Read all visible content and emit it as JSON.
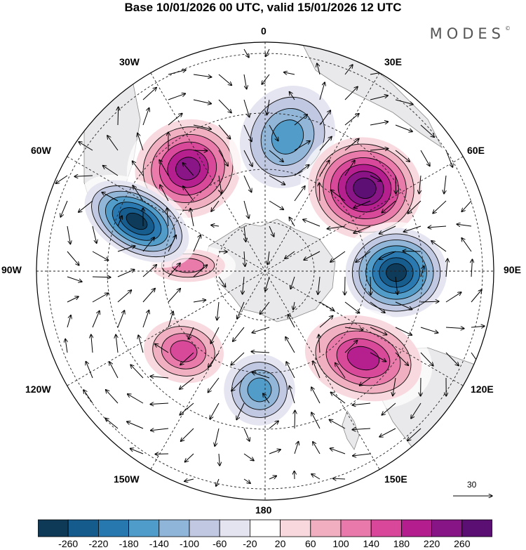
{
  "title": "Base 10/01/2026 00 UTC, valid 15/01/2026 12 UTC",
  "logo": {
    "text": "MODES",
    "mark": "©"
  },
  "longitude_labels": {
    "0": "0",
    "30E": "30E",
    "60E": "60E",
    "90E": "90E",
    "120E": "120E",
    "150E": "150E",
    "180": "180",
    "150W": "150W",
    "120W": "120W",
    "90W": "90W",
    "60W": "60W",
    "30W": "30W"
  },
  "reference_vector": {
    "value": "30"
  },
  "colorbar": {
    "ticks": [
      "-260",
      "-220",
      "-180",
      "-140",
      "-100",
      "-60",
      "-20",
      "20",
      "60",
      "100",
      "140",
      "180",
      "220",
      "260"
    ],
    "colors": [
      "#0e3a57",
      "#155b8c",
      "#2878b0",
      "#4f9bc9",
      "#8fb6d8",
      "#c0c8e2",
      "#e4e3f0",
      "#ffffff",
      "#f8d7dd",
      "#f1aec0",
      "#e979aa",
      "#d8479a",
      "#b41d8e",
      "#881586",
      "#5b0f72"
    ]
  },
  "chart_data": {
    "type": "polar-stereographic anomaly map (south pole)",
    "variable": "geopotential height anomaly with wind vectors",
    "units_range": [
      -260,
      260
    ],
    "contour_interval": 40,
    "anomaly_centers": [
      {
        "sign": "positive",
        "approx_lon": "20W",
        "max_class": "220..260"
      },
      {
        "sign": "negative",
        "approx_lon": "15E",
        "max_class": "-180..-140"
      },
      {
        "sign": "positive",
        "approx_lon": "50E",
        "max_class": "above 260"
      },
      {
        "sign": "negative",
        "approx_lon": "90E",
        "max_class": "-260..-220"
      },
      {
        "sign": "positive",
        "approx_lon": "130E",
        "max_class": "180..220"
      },
      {
        "sign": "negative",
        "approx_lon": "175E",
        "max_class": "-180..-140"
      },
      {
        "sign": "positive",
        "approx_lon": "130W",
        "max_class": "140..180"
      },
      {
        "sign": "positive",
        "approx_lon": "90W",
        "max_class": "100..140"
      },
      {
        "sign": "negative",
        "approx_lon": "65W",
        "max_class": "below -260"
      }
    ]
  }
}
